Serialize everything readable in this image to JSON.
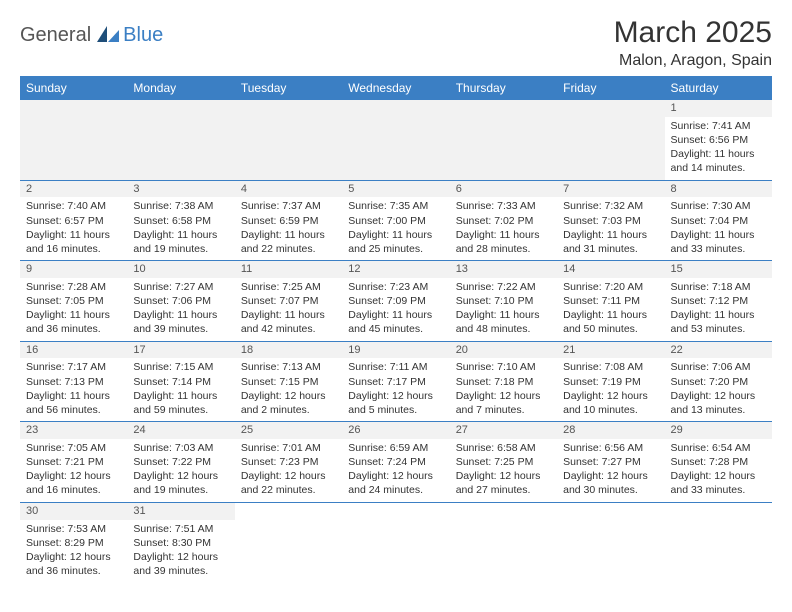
{
  "logo": {
    "general": "General",
    "blue": "Blue"
  },
  "title": "March 2025",
  "location": "Malon, Aragon, Spain",
  "colors": {
    "header_bg": "#3b7fc4",
    "header_text": "#ffffff",
    "daynum_bg": "#f2f2f2",
    "border": "#3b7fc4",
    "body_text": "#333333"
  },
  "dayHeaders": [
    "Sunday",
    "Monday",
    "Tuesday",
    "Wednesday",
    "Thursday",
    "Friday",
    "Saturday"
  ],
  "startOffset": 6,
  "days": [
    {
      "n": 1,
      "sunrise": "7:41 AM",
      "sunset": "6:56 PM",
      "daylight": "11 hours and 14 minutes."
    },
    {
      "n": 2,
      "sunrise": "7:40 AM",
      "sunset": "6:57 PM",
      "daylight": "11 hours and 16 minutes."
    },
    {
      "n": 3,
      "sunrise": "7:38 AM",
      "sunset": "6:58 PM",
      "daylight": "11 hours and 19 minutes."
    },
    {
      "n": 4,
      "sunrise": "7:37 AM",
      "sunset": "6:59 PM",
      "daylight": "11 hours and 22 minutes."
    },
    {
      "n": 5,
      "sunrise": "7:35 AM",
      "sunset": "7:00 PM",
      "daylight": "11 hours and 25 minutes."
    },
    {
      "n": 6,
      "sunrise": "7:33 AM",
      "sunset": "7:02 PM",
      "daylight": "11 hours and 28 minutes."
    },
    {
      "n": 7,
      "sunrise": "7:32 AM",
      "sunset": "7:03 PM",
      "daylight": "11 hours and 31 minutes."
    },
    {
      "n": 8,
      "sunrise": "7:30 AM",
      "sunset": "7:04 PM",
      "daylight": "11 hours and 33 minutes."
    },
    {
      "n": 9,
      "sunrise": "7:28 AM",
      "sunset": "7:05 PM",
      "daylight": "11 hours and 36 minutes."
    },
    {
      "n": 10,
      "sunrise": "7:27 AM",
      "sunset": "7:06 PM",
      "daylight": "11 hours and 39 minutes."
    },
    {
      "n": 11,
      "sunrise": "7:25 AM",
      "sunset": "7:07 PM",
      "daylight": "11 hours and 42 minutes."
    },
    {
      "n": 12,
      "sunrise": "7:23 AM",
      "sunset": "7:09 PM",
      "daylight": "11 hours and 45 minutes."
    },
    {
      "n": 13,
      "sunrise": "7:22 AM",
      "sunset": "7:10 PM",
      "daylight": "11 hours and 48 minutes."
    },
    {
      "n": 14,
      "sunrise": "7:20 AM",
      "sunset": "7:11 PM",
      "daylight": "11 hours and 50 minutes."
    },
    {
      "n": 15,
      "sunrise": "7:18 AM",
      "sunset": "7:12 PM",
      "daylight": "11 hours and 53 minutes."
    },
    {
      "n": 16,
      "sunrise": "7:17 AM",
      "sunset": "7:13 PM",
      "daylight": "11 hours and 56 minutes."
    },
    {
      "n": 17,
      "sunrise": "7:15 AM",
      "sunset": "7:14 PM",
      "daylight": "11 hours and 59 minutes."
    },
    {
      "n": 18,
      "sunrise": "7:13 AM",
      "sunset": "7:15 PM",
      "daylight": "12 hours and 2 minutes."
    },
    {
      "n": 19,
      "sunrise": "7:11 AM",
      "sunset": "7:17 PM",
      "daylight": "12 hours and 5 minutes."
    },
    {
      "n": 20,
      "sunrise": "7:10 AM",
      "sunset": "7:18 PM",
      "daylight": "12 hours and 7 minutes."
    },
    {
      "n": 21,
      "sunrise": "7:08 AM",
      "sunset": "7:19 PM",
      "daylight": "12 hours and 10 minutes."
    },
    {
      "n": 22,
      "sunrise": "7:06 AM",
      "sunset": "7:20 PM",
      "daylight": "12 hours and 13 minutes."
    },
    {
      "n": 23,
      "sunrise": "7:05 AM",
      "sunset": "7:21 PM",
      "daylight": "12 hours and 16 minutes."
    },
    {
      "n": 24,
      "sunrise": "7:03 AM",
      "sunset": "7:22 PM",
      "daylight": "12 hours and 19 minutes."
    },
    {
      "n": 25,
      "sunrise": "7:01 AM",
      "sunset": "7:23 PM",
      "daylight": "12 hours and 22 minutes."
    },
    {
      "n": 26,
      "sunrise": "6:59 AM",
      "sunset": "7:24 PM",
      "daylight": "12 hours and 24 minutes."
    },
    {
      "n": 27,
      "sunrise": "6:58 AM",
      "sunset": "7:25 PM",
      "daylight": "12 hours and 27 minutes."
    },
    {
      "n": 28,
      "sunrise": "6:56 AM",
      "sunset": "7:27 PM",
      "daylight": "12 hours and 30 minutes."
    },
    {
      "n": 29,
      "sunrise": "6:54 AM",
      "sunset": "7:28 PM",
      "daylight": "12 hours and 33 minutes."
    },
    {
      "n": 30,
      "sunrise": "7:53 AM",
      "sunset": "8:29 PM",
      "daylight": "12 hours and 36 minutes."
    },
    {
      "n": 31,
      "sunrise": "7:51 AM",
      "sunset": "8:30 PM",
      "daylight": "12 hours and 39 minutes."
    }
  ],
  "labels": {
    "sunrise": "Sunrise:",
    "sunset": "Sunset:",
    "daylight": "Daylight:"
  }
}
